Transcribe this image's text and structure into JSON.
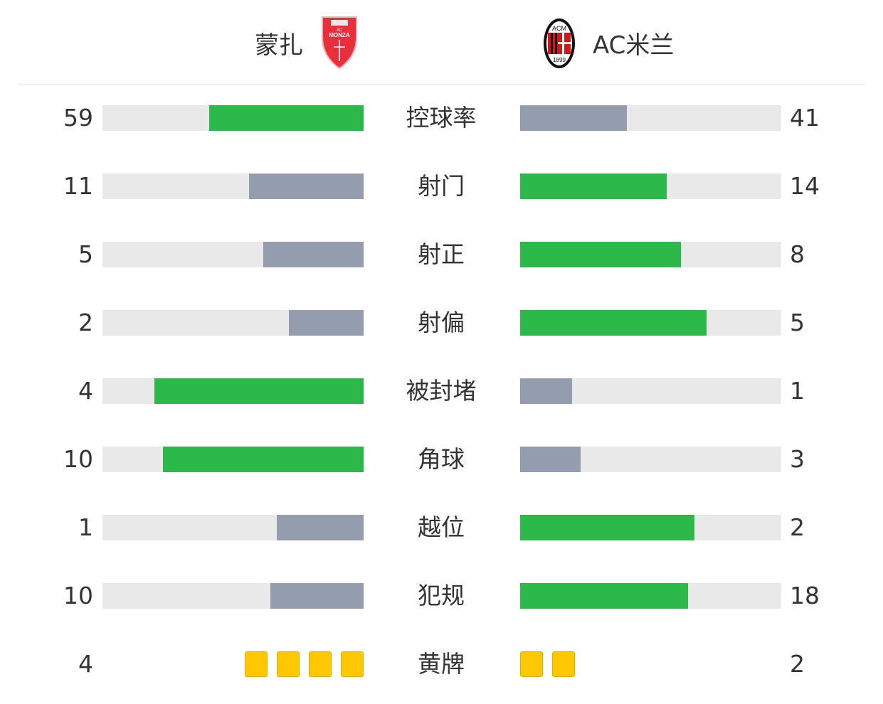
{
  "header": {
    "home": {
      "name": "蒙扎",
      "logo": "monza-crest",
      "logo_text": "AC MONZA"
    },
    "away": {
      "name": "AC米兰",
      "logo": "ac-milan-crest",
      "logo_text": "ACM 1899"
    }
  },
  "colors": {
    "winner": "#2db84a",
    "loser": "#949dae",
    "track": "#e9e9e9",
    "card": "#ffc800"
  },
  "stats": [
    {
      "label": "控球率",
      "home": 59,
      "away": 41
    },
    {
      "label": "射门",
      "home": 11,
      "away": 14
    },
    {
      "label": "射正",
      "home": 5,
      "away": 8
    },
    {
      "label": "射偏",
      "home": 2,
      "away": 5
    },
    {
      "label": "被封堵",
      "home": 4,
      "away": 1
    },
    {
      "label": "角球",
      "home": 10,
      "away": 3
    },
    {
      "label": "越位",
      "home": 1,
      "away": 2
    },
    {
      "label": "犯规",
      "home": 10,
      "away": 18
    }
  ],
  "yellow_cards": {
    "label": "黄牌",
    "home": 4,
    "away": 2
  }
}
